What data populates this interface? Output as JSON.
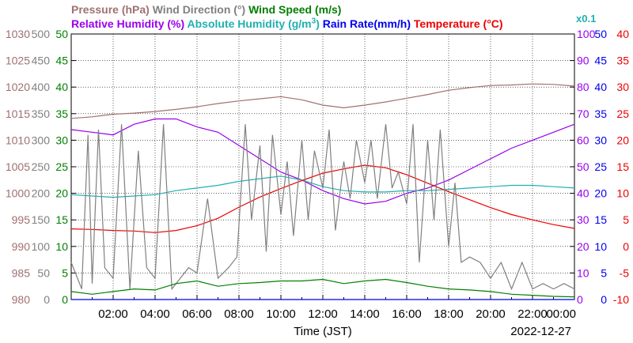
{
  "legend": {
    "pressure": "Pressure (hPa)",
    "wind_direction": "Wind Direction (°)",
    "wind_speed": "Wind Speed (m/s)",
    "relative_humidity": "Relative Humidity (%)",
    "absolute_humidity": "Absolute Humidity (g/m",
    "absolute_humidity_sup": "3",
    "absolute_humidity_close": ")",
    "rain_rate": "Rain Rate(mm/h)",
    "temperature": "Temperature (°C)",
    "multiplier": "x0.1"
  },
  "xlabel": "Time (JST)",
  "date": "2022-12-27",
  "colors": {
    "pressure": "#a07070",
    "wind_direction": "#808080",
    "wind_speed": "#008000",
    "relative_humidity": "#9900ee",
    "absolute_humidity": "#20b0b0",
    "rain_rate": "#0000ee",
    "temperature": "#ee0000"
  },
  "chart_data": {
    "type": "line",
    "x_ticks": [
      "02:00",
      "04:00",
      "06:00",
      "08:00",
      "10:00",
      "12:00",
      "14:00",
      "16:00",
      "18:00",
      "20:00",
      "22:00",
      "00:00"
    ],
    "xlim": [
      "00:00",
      "24:00"
    ],
    "grid": true,
    "axes": {
      "pressure": {
        "ylim": [
          980,
          1030
        ],
        "ticks": [
          "980",
          "985",
          "990",
          "995",
          "1000",
          "1005",
          "1010",
          "1015",
          "1020",
          "1025",
          "1030"
        ]
      },
      "wind_direction": {
        "ylim": [
          0,
          500
        ],
        "ticks": [
          "0",
          "50",
          "100",
          "150",
          "200",
          "250",
          "300",
          "350",
          "400",
          "450",
          "500"
        ]
      },
      "wind_speed": {
        "ylim": [
          0,
          50
        ],
        "ticks": [
          "0",
          "5",
          "10",
          "15",
          "20",
          "25",
          "30",
          "35",
          "40",
          "45",
          "50"
        ]
      },
      "relative_humidity": {
        "ylim": [
          0,
          100
        ],
        "ticks": [
          "0",
          "10",
          "20",
          "30",
          "40",
          "50",
          "60",
          "70",
          "80",
          "90",
          "100"
        ]
      },
      "rain_rate": {
        "ylim": [
          0,
          50
        ],
        "ticks": [
          "0",
          "5",
          "10",
          "15",
          "20",
          "25",
          "30",
          "35",
          "40",
          "45",
          "50"
        ]
      },
      "temperature": {
        "ylim": [
          -10,
          40
        ],
        "ticks": [
          "-10",
          "-5",
          "0",
          "5",
          "10",
          "15",
          "20",
          "25",
          "30",
          "35",
          "40"
        ]
      }
    },
    "series": [
      {
        "name": "Pressure (hPa)",
        "x": [
          0,
          1,
          2,
          3,
          4,
          5,
          6,
          7,
          8,
          9,
          10,
          11,
          12,
          13,
          14,
          15,
          16,
          17,
          18,
          19,
          20,
          21,
          22,
          23,
          24
        ],
        "values": [
          1014.1,
          1014.4,
          1014.9,
          1015.1,
          1015.4,
          1015.8,
          1016.3,
          1016.9,
          1017.4,
          1017.8,
          1018.2,
          1017.6,
          1016.6,
          1016.1,
          1016.6,
          1017.2,
          1017.9,
          1018.6,
          1019.4,
          1019.9,
          1020.3,
          1020.4,
          1020.6,
          1020.5,
          1020.2
        ]
      },
      {
        "name": "Relative Humidity (%)",
        "x": [
          0,
          1,
          2,
          3,
          4,
          5,
          6,
          7,
          8,
          9,
          10,
          11,
          12,
          13,
          14,
          15,
          16,
          17,
          18,
          19,
          20,
          21,
          22,
          23,
          24
        ],
        "values": [
          64,
          63,
          62,
          66,
          68,
          68,
          65,
          63,
          58,
          53,
          48,
          45,
          41,
          38,
          36,
          37,
          40,
          42,
          45,
          49,
          53,
          57,
          60,
          63,
          66
        ]
      },
      {
        "name": "Absolute Humidity (g/m3) x0.1",
        "x": [
          0,
          1,
          2,
          3,
          4,
          5,
          6,
          7,
          8,
          9,
          10,
          11,
          12,
          13,
          14,
          15,
          16,
          17,
          18,
          19,
          20,
          21,
          22,
          23,
          24
        ],
        "values": [
          39.5,
          39,
          38.5,
          39,
          39.5,
          41,
          42,
          43,
          44.5,
          45.5,
          46.5,
          45,
          42.5,
          41,
          40.5,
          40.5,
          41,
          41,
          41.5,
          42,
          42.5,
          43,
          43,
          42.5,
          42
        ]
      },
      {
        "name": "Temperature (°C)",
        "x": [
          0,
          1,
          2,
          3,
          4,
          5,
          6,
          7,
          8,
          9,
          10,
          11,
          12,
          13,
          14,
          15,
          16,
          17,
          18,
          19,
          20,
          21,
          22,
          23,
          24
        ],
        "values": [
          3.3,
          3.2,
          3.0,
          2.9,
          2.6,
          3.0,
          3.9,
          5.3,
          7.4,
          9.3,
          10.9,
          12.4,
          13.8,
          14.6,
          15.3,
          14.8,
          13.5,
          11.9,
          10.3,
          8.8,
          7.3,
          6.0,
          5.0,
          4.1,
          3.4
        ]
      },
      {
        "name": "Wind Direction (°)",
        "x": [
          0,
          0.5,
          0.8,
          1.0,
          1.3,
          1.6,
          2.0,
          2.4,
          2.8,
          3.2,
          3.6,
          4.0,
          4.4,
          4.8,
          5.2,
          5.6,
          6.0,
          6.5,
          7.0,
          7.5,
          7.9,
          8.3,
          8.6,
          9.0,
          9.3,
          9.6,
          10.0,
          10.3,
          10.6,
          11.0,
          11.3,
          11.6,
          12.0,
          12.3,
          12.6,
          13.0,
          13.3,
          13.6,
          14.0,
          14.3,
          14.6,
          15.0,
          15.3,
          15.6,
          16.0,
          16.3,
          16.6,
          17.0,
          17.3,
          17.6,
          18.0,
          18.3,
          18.6,
          19.0,
          19.5,
          20.0,
          20.5,
          21.0,
          21.5,
          22.0,
          22.5,
          23.0,
          23.5,
          24.0
        ],
        "values": [
          70,
          20,
          310,
          30,
          320,
          60,
          40,
          330,
          20,
          280,
          60,
          40,
          330,
          20,
          40,
          60,
          50,
          190,
          40,
          60,
          80,
          330,
          150,
          290,
          90,
          310,
          160,
          260,
          120,
          300,
          150,
          280,
          210,
          320,
          130,
          260,
          190,
          300,
          220,
          300,
          190,
          330,
          210,
          240,
          180,
          330,
          70,
          300,
          150,
          320,
          100,
          220,
          70,
          80,
          70,
          40,
          70,
          20,
          70,
          20,
          30,
          20,
          30,
          20
        ]
      },
      {
        "name": "Wind Speed (m/s)",
        "x": [
          0,
          1,
          2,
          3,
          4,
          5,
          6,
          7,
          8,
          9,
          10,
          11,
          12,
          13,
          14,
          15,
          16,
          17,
          18,
          19,
          20,
          21,
          22,
          23,
          24
        ],
        "values": [
          1.5,
          1.0,
          1.5,
          2.0,
          1.8,
          3.0,
          3.5,
          2.5,
          3.0,
          3.2,
          3.5,
          3.5,
          3.8,
          3.0,
          3.5,
          3.8,
          3.2,
          2.5,
          2.0,
          1.8,
          1.5,
          1.0,
          0.8,
          0.6,
          0.5
        ]
      },
      {
        "name": "Rain Rate(mm/h)",
        "x": [
          0,
          24
        ],
        "values": [
          0,
          0
        ]
      }
    ]
  }
}
